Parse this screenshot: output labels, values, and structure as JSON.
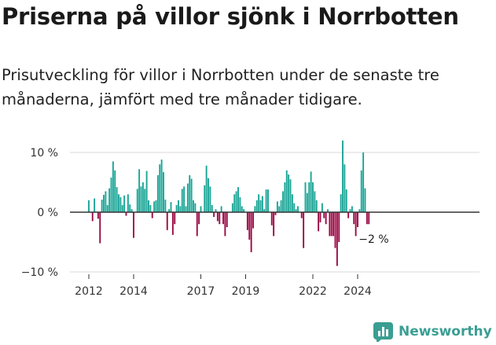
{
  "header": {
    "title": "Priserna på villor sjönk i Norrbotten",
    "subtitle": "Prisutveckling för villor i Norrbotten under de senaste tre månaderna, jämfört med tre månader tidigare."
  },
  "brand": {
    "name": "Newsworthy",
    "logo": "chart-bars-icon"
  },
  "colors": {
    "positive": "#1aa596",
    "negative": "#9b0a45",
    "grid": "#d9d9d9",
    "axis": "#333333"
  },
  "chart_data": {
    "type": "bar",
    "x_unit": "month",
    "start": "2012-01",
    "ylim": [
      -10,
      13
    ],
    "y_ticks": [
      {
        "value": 10,
        "label": "10 %"
      },
      {
        "value": 0,
        "label": "0 %"
      },
      {
        "value": -10,
        "label": "−10 %"
      }
    ],
    "x_ticks": [
      {
        "label": "2012",
        "year": 2012
      },
      {
        "label": "2014",
        "year": 2014
      },
      {
        "label": "2017",
        "year": 2017
      },
      {
        "label": "2019",
        "year": 2019
      },
      {
        "label": "2022",
        "year": 2022
      },
      {
        "label": "2024",
        "year": 2024
      }
    ],
    "annotation": {
      "label": "−2 %",
      "value": -2
    },
    "values": [
      2.0,
      0.0,
      -1.5,
      2.3,
      0.0,
      -1.1,
      -5.2,
      2.1,
      2.9,
      3.5,
      1.2,
      4.0,
      5.8,
      8.5,
      7.0,
      4.2,
      3.0,
      2.5,
      1.2,
      2.8,
      -0.6,
      3.0,
      1.3,
      0.5,
      -4.3,
      0.0,
      3.9,
      7.2,
      4.3,
      5.0,
      3.9,
      6.9,
      2.0,
      1.2,
      -1.0,
      1.8,
      2.0,
      6.2,
      8.0,
      8.8,
      6.7,
      2.1,
      -3.0,
      0.5,
      1.7,
      -3.8,
      -2.0,
      1.2,
      2.0,
      1.0,
      3.9,
      4.3,
      1.0,
      4.8,
      6.2,
      5.6,
      2.0,
      1.5,
      -4.0,
      -2.0,
      1.0,
      0.0,
      4.5,
      7.8,
      5.7,
      4.3,
      1.2,
      -0.8,
      0.5,
      -1.5,
      -2.0,
      1.0,
      -2.0,
      -4.0,
      -2.5,
      0.0,
      0.0,
      1.5,
      3.0,
      3.5,
      4.2,
      2.5,
      1.0,
      0.5,
      0.0,
      -3.0,
      -4.6,
      -6.7,
      -2.7,
      1.0,
      2.0,
      3.0,
      2.0,
      2.7,
      0.5,
      3.8,
      3.8,
      0.0,
      -2.2,
      -4.0,
      -0.5,
      1.8,
      1.0,
      2.0,
      3.5,
      5.0,
      7.0,
      6.3,
      5.5,
      3.0,
      1.5,
      0.5,
      1.0,
      0.0,
      -1.0,
      -6.0,
      5.0,
      3.2,
      5.0,
      6.8,
      5.0,
      3.5,
      2.0,
      -3.2,
      -1.7,
      1.5,
      -1.0,
      -2.0,
      0.5,
      -4.0,
      -4.0,
      -4.0,
      -6.0,
      -9.0,
      -5.0,
      3.0,
      12.0,
      8.0,
      3.8,
      -1.0,
      0.5,
      1.0,
      -2.0,
      -4.0,
      -2.5,
      0.5,
      7.0,
      10.0,
      4.0,
      -2.0,
      -2.0
    ]
  }
}
